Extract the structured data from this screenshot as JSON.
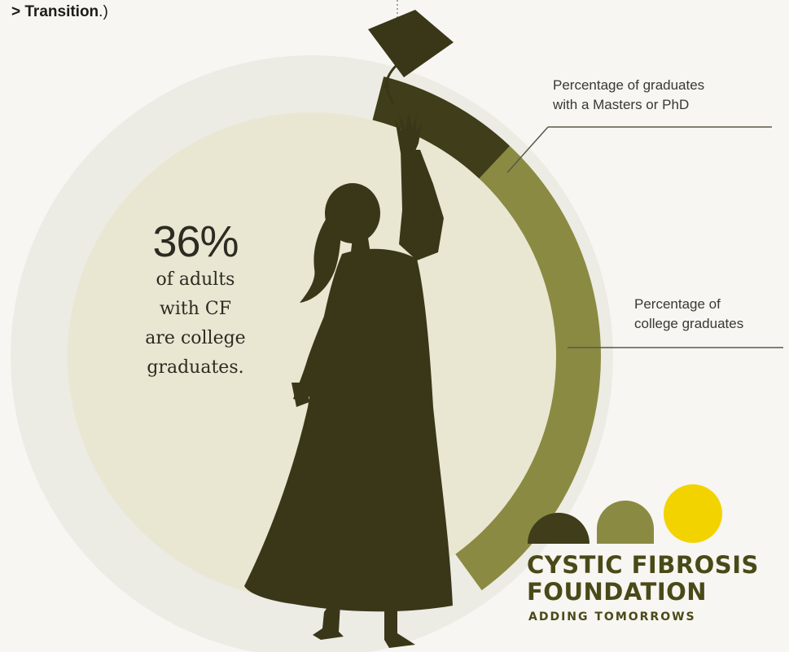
{
  "intro_text": {
    "prefix": "> ",
    "bold": "Transition",
    "suffix": ".)"
  },
  "headline": {
    "value": "36%",
    "lines": [
      "of adults",
      "with CF",
      "are college",
      "graduates."
    ]
  },
  "chart_data": {
    "type": "pie",
    "title": "",
    "slices": [
      {
        "label": "Percentage of college graduates",
        "value": 36,
        "color": "#8a8a42"
      },
      {
        "label": "Percentage of graduates with a Masters or PhD",
        "value": 8,
        "color": "#3f3d1a"
      }
    ],
    "callouts": [
      {
        "lines": [
          "Percentage of graduates",
          "with a Masters or PhD"
        ]
      },
      {
        "lines": [
          "Percentage of",
          "college graduates"
        ]
      }
    ]
  },
  "logo": {
    "line1": "CYSTIC FIBROSIS",
    "line2": "FOUNDATION",
    "tagline": "ADDING TOMORROWS",
    "dot_colors": [
      "#3f3d1a",
      "#8a8a42",
      "#f2d300"
    ]
  },
  "colors": {
    "outer_ring": "#ecebe4",
    "inner_disc": "#e9e7d2",
    "silhouette": "#3a3719",
    "college_arc": "#8a8a42",
    "masters_arc": "#3f3d1a",
    "leader_line": "#5a5848",
    "accent_yellow": "#f2d300"
  }
}
